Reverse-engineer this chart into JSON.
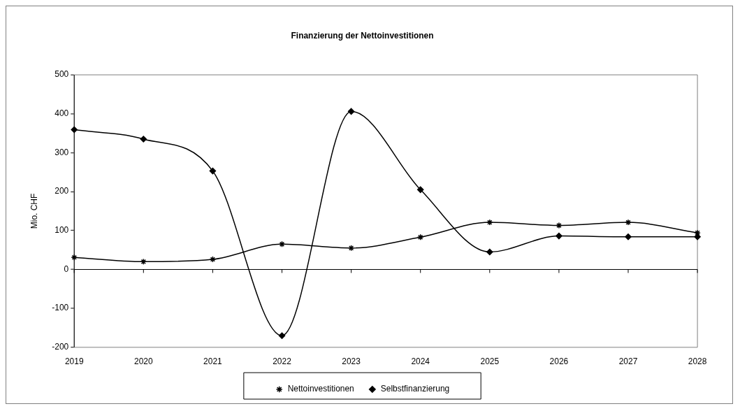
{
  "chart_data": {
    "type": "line",
    "title": "Finanzierung der Nettoinvestitionen",
    "ylabel": "Mio. CHF",
    "categories": [
      "2019",
      "2020",
      "2021",
      "2022",
      "2023",
      "2024",
      "2025",
      "2026",
      "2027",
      "2028"
    ],
    "series": [
      {
        "name": "Nettoinvestitionen",
        "color": "#000000",
        "marker": "cross",
        "values": [
          31,
          20,
          26,
          65,
          55,
          83,
          121,
          113,
          121,
          94
        ]
      },
      {
        "name": "Selbstfinanzierung",
        "color": "#000000",
        "marker": "diamond",
        "values": [
          359,
          335,
          253,
          -170,
          406,
          205,
          45,
          86,
          84,
          84
        ]
      }
    ],
    "ylim": [
      -200,
      500
    ],
    "yticks": [
      -200,
      -100,
      0,
      100,
      200,
      300,
      400,
      500
    ],
    "legend": "bottom",
    "line_style": "solid"
  }
}
